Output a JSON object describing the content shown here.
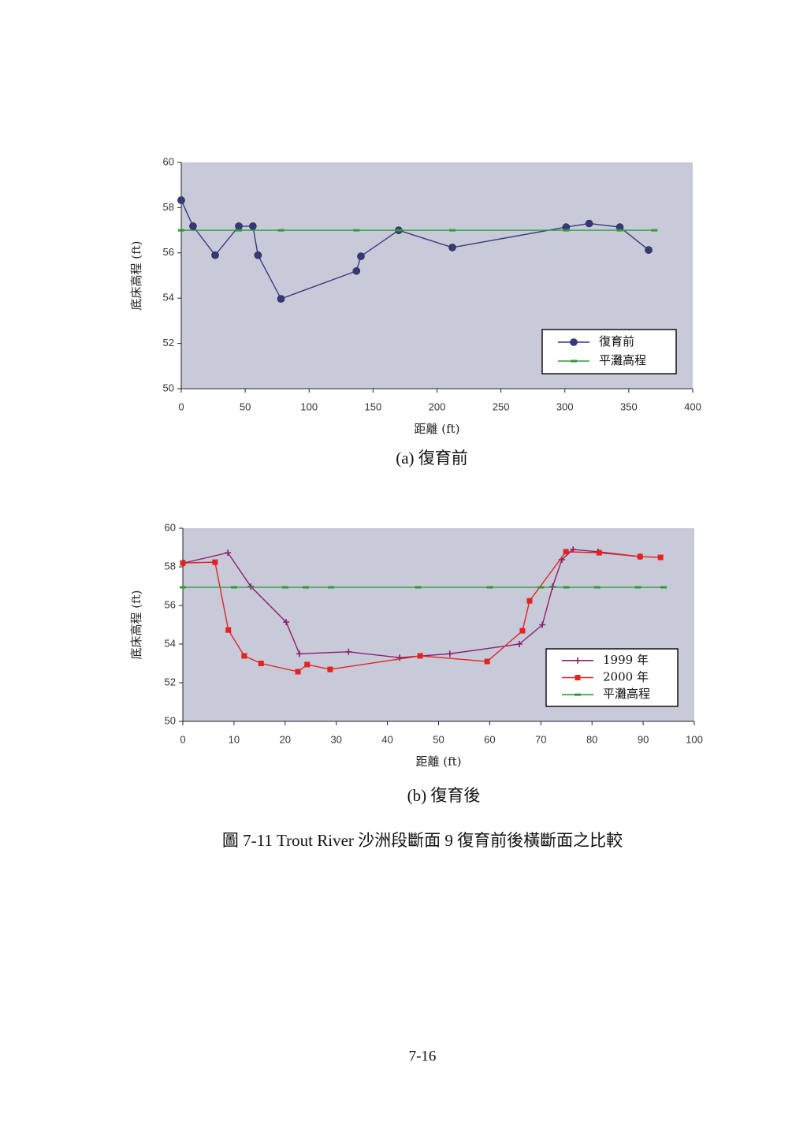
{
  "chart_data": [
    {
      "type": "line",
      "x_label": "距離 (ft)",
      "y_label": "底床高程 (ft)",
      "xlim": [
        0,
        400
      ],
      "xticks": [
        0,
        50,
        100,
        150,
        200,
        250,
        300,
        350,
        400
      ],
      "ylim": [
        50,
        60
      ],
      "yticks": [
        50,
        52,
        54,
        56,
        58,
        60
      ],
      "grid": false,
      "legend": "lower right",
      "background": "#c9cad9",
      "series": [
        {
          "name": "復育前",
          "color": "#34397f",
          "marker": "circle",
          "x": [
            0,
            9.2,
            26.5,
            45,
            56,
            60,
            78,
            137,
            140.5,
            170,
            212,
            301,
            319,
            343,
            365.5
          ],
          "values": [
            58.33,
            57.18,
            55.9,
            57.18,
            57.18,
            55.9,
            53.97,
            55.2,
            55.85,
            57.0,
            56.24,
            57.14,
            57.3,
            57.14,
            56.13
          ]
        },
        {
          "name": "平灘高程",
          "color": "#2f9a3a",
          "marker": "dash",
          "x": [
            0,
            45,
            78,
            137,
            170,
            212,
            301,
            343,
            370
          ],
          "values": [
            57,
            57,
            57,
            57,
            57,
            57,
            57,
            57,
            57
          ]
        }
      ]
    },
    {
      "type": "line",
      "x_label": "距離 (ft)",
      "y_label": "底床高程 (ft)",
      "xlim": [
        0,
        100
      ],
      "xticks": [
        0,
        10,
        20,
        30,
        40,
        50,
        60,
        70,
        80,
        90,
        100
      ],
      "ylim": [
        50,
        60
      ],
      "yticks": [
        50,
        52,
        54,
        56,
        58,
        60
      ],
      "grid": false,
      "legend": "lower right",
      "background": "#c9cad9",
      "series": [
        {
          "name": "1999 年",
          "color": "#8c1f6e",
          "marker": "plus",
          "x": [
            0.2,
            8.8,
            13.3,
            20.2,
            22.8,
            32.4,
            42.4,
            52.2,
            65.8,
            70.3,
            72.3,
            74.1,
            76.3,
            81.2,
            89.4
          ],
          "values": [
            58.2,
            58.73,
            56.98,
            55.14,
            53.5,
            53.6,
            53.3,
            53.5,
            54.0,
            55.0,
            56.98,
            58.37,
            58.9,
            58.78,
            58.53
          ]
        },
        {
          "name": "2000 年",
          "color": "#e2231f",
          "marker": "square",
          "x": [
            0,
            6.3,
            8.9,
            12.0,
            15.3,
            22.5,
            24.3,
            28.8,
            46.4,
            59.5,
            66.4,
            67.8,
            74.9,
            81.4,
            89.4,
            93.4
          ],
          "values": [
            58.2,
            58.24,
            54.73,
            53.39,
            53.0,
            52.57,
            52.94,
            52.69,
            53.39,
            53.1,
            54.69,
            56.24,
            58.78,
            58.73,
            58.53,
            58.49
          ]
        },
        {
          "name": "平灘高程",
          "color": "#2f9a3a",
          "marker": "dash",
          "x": [
            0,
            10,
            20,
            24,
            29,
            46,
            60,
            70,
            75,
            81,
            89,
            94
          ],
          "values": [
            56.94,
            56.94,
            56.94,
            56.94,
            56.94,
            56.94,
            56.94,
            56.94,
            56.94,
            56.94,
            56.94,
            56.94
          ]
        }
      ]
    }
  ],
  "captions": [
    "(a) 復育前",
    "(b) 復育後"
  ],
  "figure_caption": "圖 7-11 Trout River 沙洲段斷面 9 復育前後橫斷面之比較",
  "page_number": "7-16"
}
